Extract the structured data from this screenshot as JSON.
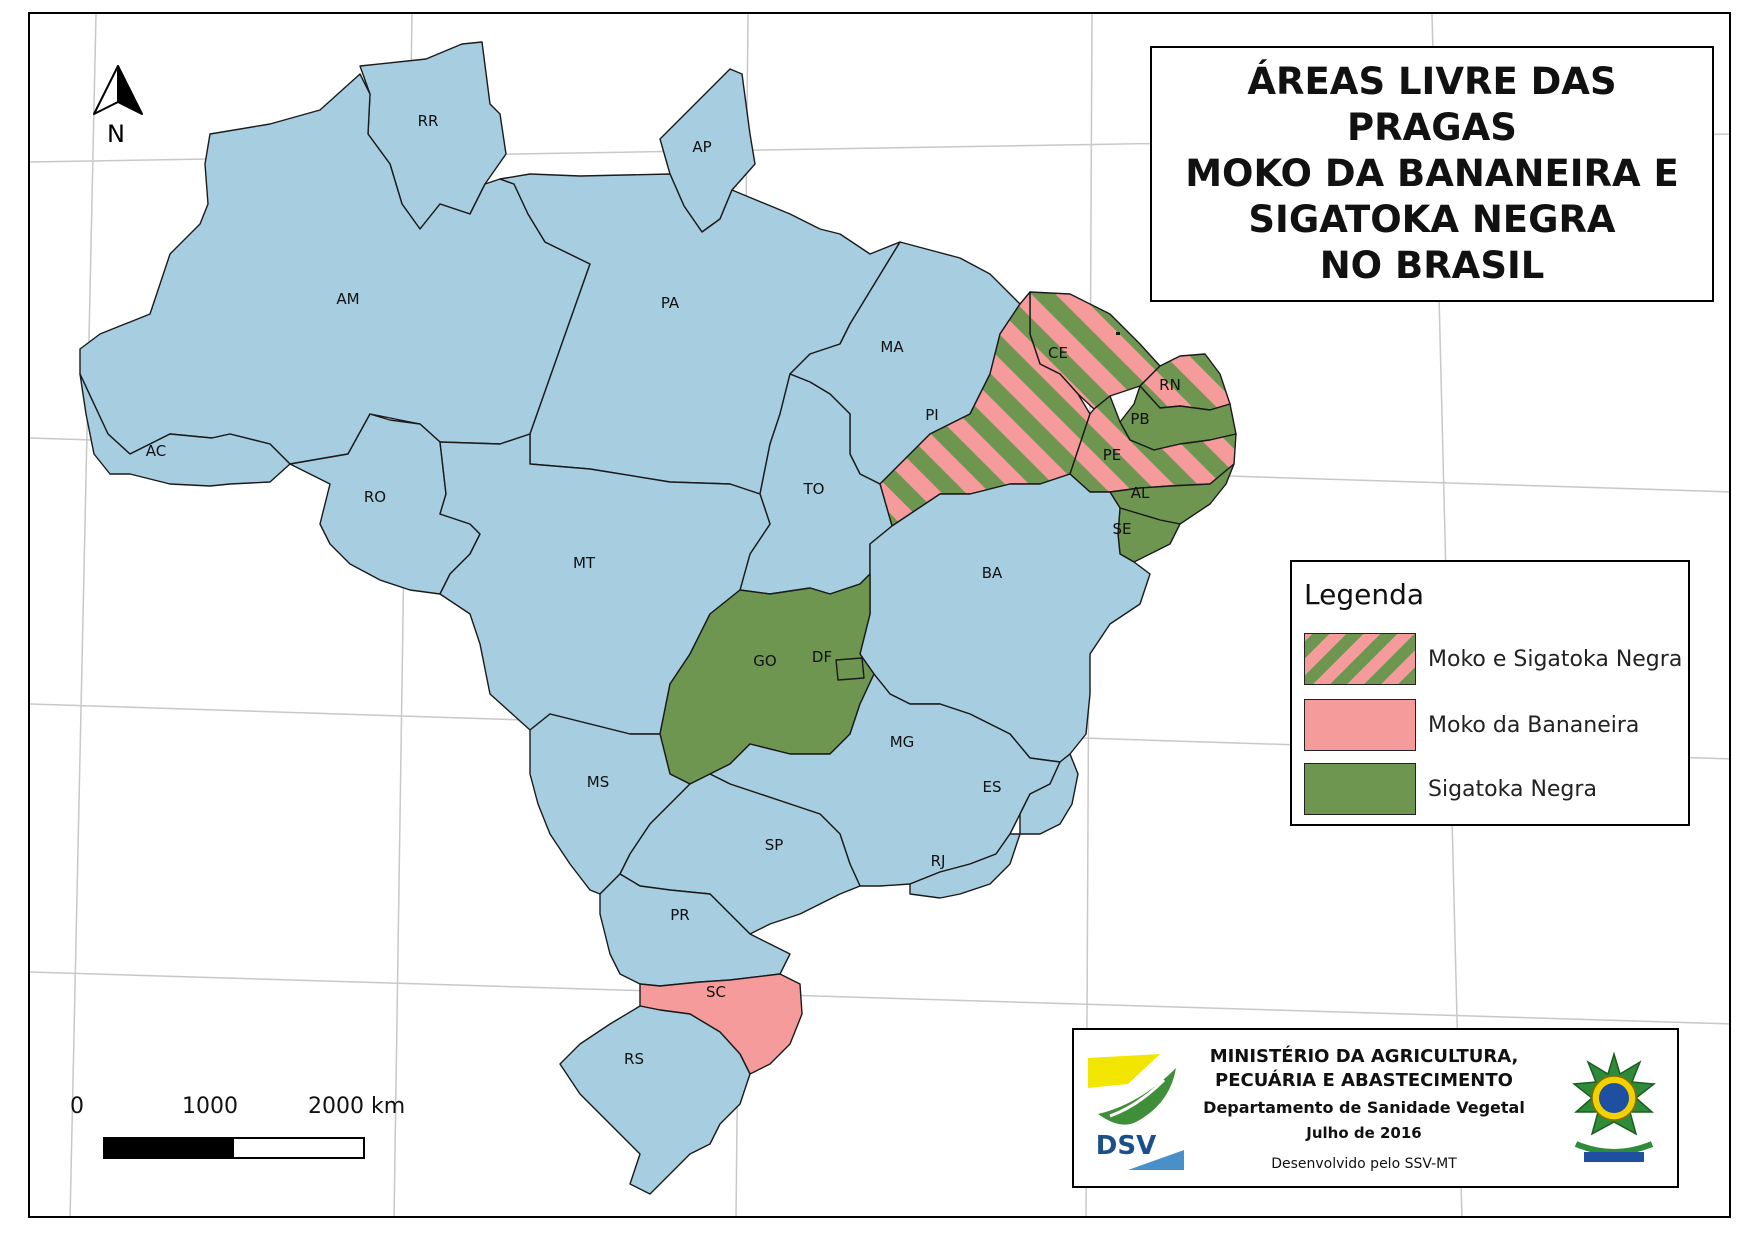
{
  "title": {
    "lines": [
      "ÁREAS LIVRE DAS",
      "PRAGAS",
      "MOKO DA BANANEIRA E",
      "SIGATOKA NEGRA",
      "NO BRASIL"
    ]
  },
  "north_label": "N",
  "legend": {
    "title": "Legenda",
    "items": [
      {
        "label": "Moko e Sigatoka Negra",
        "category": "both"
      },
      {
        "label": "Moko da Bananeira",
        "category": "moko"
      },
      {
        "label": "Sigatoka Negra",
        "category": "sigatoka"
      }
    ]
  },
  "colors": {
    "none": "#a6cde0",
    "moko": "#f59b9b",
    "sigatoka": "#6e9650",
    "border": "#1a1a1a",
    "grid": "#c8c8c8"
  },
  "states": [
    {
      "code": "RR",
      "category": "none"
    },
    {
      "code": "AP",
      "category": "none"
    },
    {
      "code": "AM",
      "category": "none"
    },
    {
      "code": "PA",
      "category": "none"
    },
    {
      "code": "MA",
      "category": "none"
    },
    {
      "code": "CE",
      "category": "both"
    },
    {
      "code": "RN",
      "category": "both"
    },
    {
      "code": "PB",
      "category": "sigatoka"
    },
    {
      "code": "PI",
      "category": "both"
    },
    {
      "code": "PE",
      "category": "both"
    },
    {
      "code": "AL",
      "category": "sigatoka"
    },
    {
      "code": "SE",
      "category": "sigatoka"
    },
    {
      "code": "AC",
      "category": "none"
    },
    {
      "code": "RO",
      "category": "none"
    },
    {
      "code": "TO",
      "category": "none"
    },
    {
      "code": "MT",
      "category": "none"
    },
    {
      "code": "BA",
      "category": "none"
    },
    {
      "code": "GO",
      "category": "sigatoka"
    },
    {
      "code": "DF",
      "category": "sigatoka"
    },
    {
      "code": "MG",
      "category": "none"
    },
    {
      "code": "MS",
      "category": "none"
    },
    {
      "code": "ES",
      "category": "none"
    },
    {
      "code": "SP",
      "category": "none"
    },
    {
      "code": "RJ",
      "category": "none"
    },
    {
      "code": "PR",
      "category": "none"
    },
    {
      "code": "SC",
      "category": "moko"
    },
    {
      "code": "RS",
      "category": "none"
    }
  ],
  "scale": {
    "labels": [
      "0",
      "1000",
      "2000 km"
    ]
  },
  "credits": {
    "org_line1": "MINISTÉRIO DA AGRICULTURA,",
    "org_line2": "PECUÁRIA E ABASTECIMENTO",
    "department": "Departamento de Sanidade Vegetal",
    "date": "Julho de 2016",
    "developer": "Desenvolvido pelo SSV-MT",
    "logo_text": "DSV"
  }
}
